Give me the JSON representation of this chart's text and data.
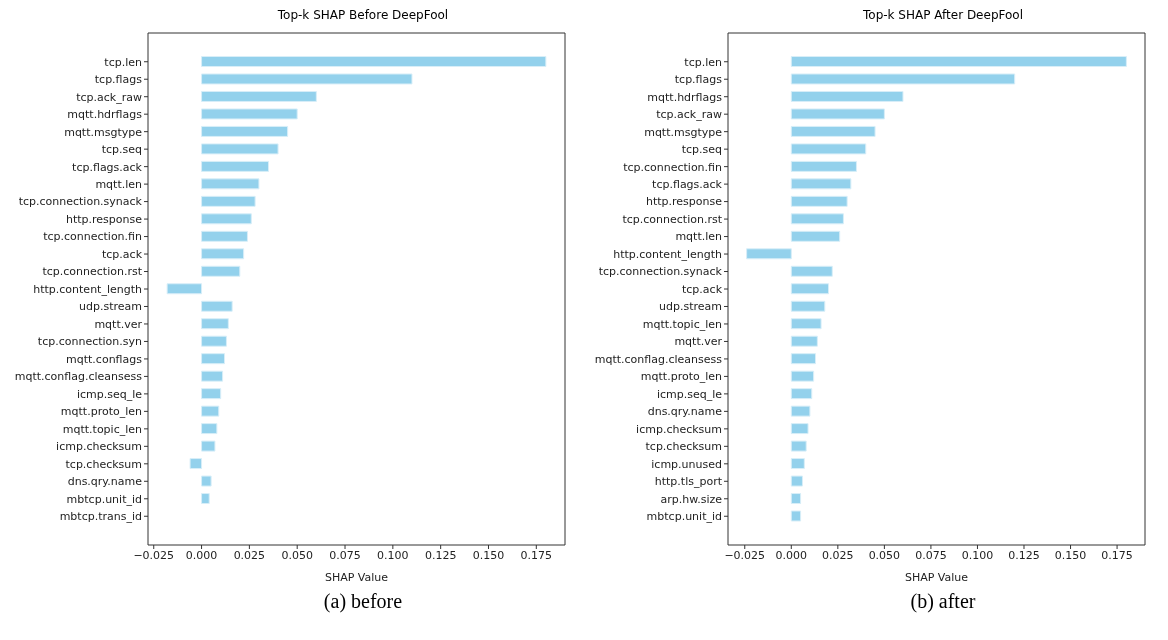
{
  "chart_data": [
    {
      "type": "bar",
      "orientation": "horizontal",
      "title": "Top-k SHAP Before DeepFool",
      "xlabel": "SHAP Value",
      "annotations": [
        "(a) before"
      ],
      "categories": [
        "tcp.len",
        "tcp.flags",
        "tcp.ack_raw",
        "mqtt.hdrflags",
        "mqtt.msgtype",
        "tcp.seq",
        "tcp.flags.ack",
        "mqtt.len",
        "tcp.connection.synack",
        "http.response",
        "tcp.connection.fin",
        "tcp.ack",
        "tcp.connection.rst",
        "http.content_length",
        "udp.stream",
        "mqtt.ver",
        "tcp.connection.syn",
        "mqtt.conflags",
        "mqtt.conflag.cleansess",
        "icmp.seq_le",
        "mqtt.proto_len",
        "mqtt.topic_len",
        "icmp.checksum",
        "tcp.checksum",
        "dns.qry.name",
        "mbtcp.unit_id",
        "mbtcp.trans_id"
      ],
      "values": [
        0.18,
        0.11,
        0.06,
        0.05,
        0.045,
        0.04,
        0.035,
        0.03,
        0.028,
        0.026,
        0.024,
        0.022,
        0.02,
        -0.018,
        0.016,
        0.014,
        0.013,
        0.012,
        0.011,
        0.01,
        0.009,
        0.008,
        0.007,
        -0.006,
        0.005,
        0.004,
        0
      ],
      "color": "#93d1ec",
      "xlim": [
        -0.028,
        0.19
      ],
      "xticks": [
        {
          "value": -0.025,
          "label": "−0.025"
        },
        {
          "value": 0,
          "label": "0.000"
        },
        0.025,
        {
          "value": 0.05,
          "label": "0.050"
        },
        0.075,
        {
          "value": 0.1,
          "label": "0.100"
        },
        0.125,
        {
          "value": 0.15,
          "label": "0.150"
        },
        0.175
      ],
      "grid": false,
      "legend": false
    },
    {
      "type": "bar",
      "orientation": "horizontal",
      "title": "Top-k SHAP After DeepFool",
      "xlabel": "SHAP Value",
      "annotations": [
        "(b) after"
      ],
      "categories": [
        "tcp.len",
        "tcp.flags",
        "mqtt.hdrflags",
        "tcp.ack_raw",
        "mqtt.msgtype",
        "tcp.seq",
        "tcp.connection.fin",
        "tcp.flags.ack",
        "http.response",
        "tcp.connection.rst",
        "mqtt.len",
        "http.content_length",
        "tcp.connection.synack",
        "tcp.ack",
        "udp.stream",
        "mqtt.topic_len",
        "mqtt.ver",
        "mqtt.conflag.cleansess",
        "mqtt.proto_len",
        "icmp.seq_le",
        "dns.qry.name",
        "icmp.checksum",
        "tcp.checksum",
        "icmp.unused",
        "http.tls_port",
        "arp.hw.size",
        "mbtcp.unit_id"
      ],
      "values": [
        0.18,
        0.12,
        0.06,
        0.05,
        0.045,
        0.04,
        0.035,
        0.032,
        0.03,
        0.028,
        0.026,
        -0.024,
        0.022,
        0.02,
        0.018,
        0.016,
        0.014,
        0.013,
        0.012,
        0.011,
        0.01,
        0.009,
        0.008,
        0.007,
        0.006,
        0.005,
        0.005
      ],
      "color": "#93d1ec",
      "xlim": [
        -0.034,
        0.19
      ],
      "xticks": [
        {
          "value": -0.025,
          "label": "−0.025"
        },
        {
          "value": 0,
          "label": "0.000"
        },
        0.025,
        {
          "value": 0.05,
          "label": "0.050"
        },
        0.075,
        {
          "value": 0.1,
          "label": "0.100"
        },
        0.125,
        {
          "value": 0.15,
          "label": "0.150"
        },
        0.175
      ],
      "grid": false,
      "legend": false
    }
  ]
}
